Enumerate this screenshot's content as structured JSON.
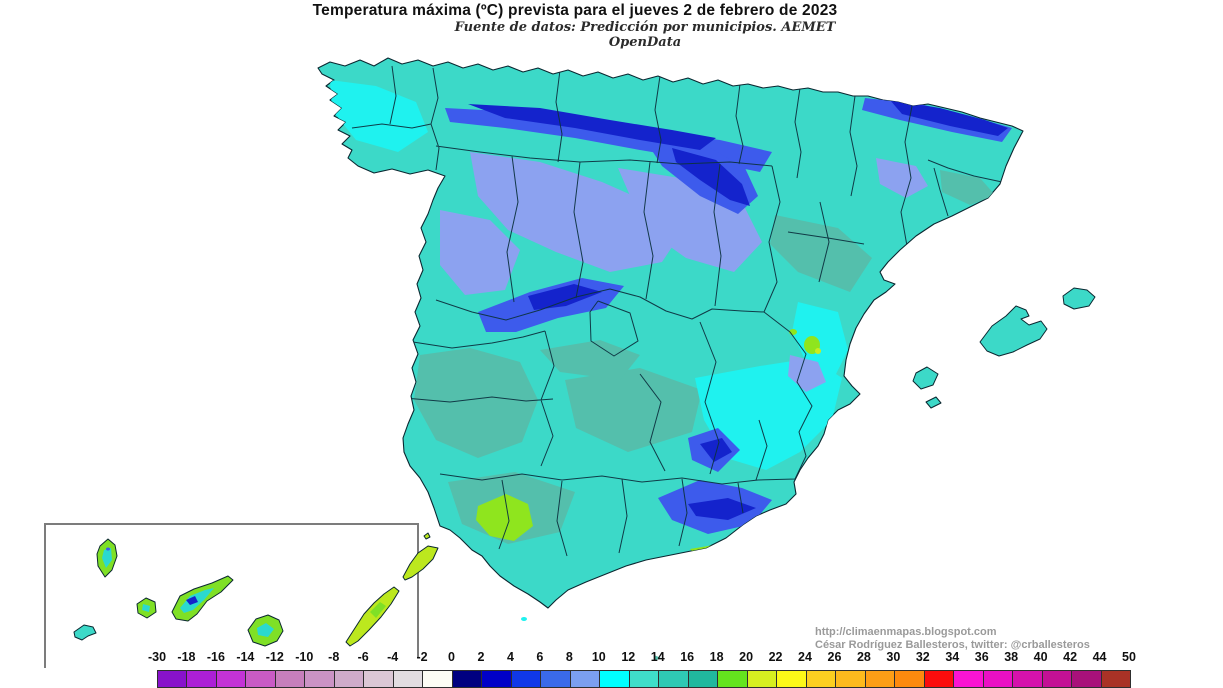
{
  "title": "Temperatura máxima (ºC) prevista para el jueves 2 de febrero de 2023",
  "subtitle": "Fuente de datos: Predicción por municipios. AEMET OpenData",
  "credits": {
    "url": "http://climaenmapas.blogspot.com",
    "author": "César Rodríguez Ballesteros, twitter: @crballesteros"
  },
  "legend": {
    "unit": "ºC",
    "values": [
      "-30",
      "-18",
      "-16",
      "-14",
      "-12",
      "-10",
      "-8",
      "-6",
      "-4",
      "-2",
      "0",
      "2",
      "4",
      "6",
      "8",
      "10",
      "12",
      "14",
      "16",
      "18",
      "20",
      "22",
      "24",
      "26",
      "28",
      "30",
      "32",
      "34",
      "36",
      "38",
      "40",
      "42",
      "44",
      "50"
    ],
    "cell_colors": [
      "#8812CB",
      "#AC1FD6",
      "#C433D6",
      "#C95BC5",
      "#C77FBC",
      "#CB93C5",
      "#CFABCA",
      "#DBC7D5",
      "#E2DDE1",
      "#FDFDF5",
      "#000080",
      "#0000C8",
      "#1038E8",
      "#3A6AEA",
      "#7B9FF0",
      "#00FFFF",
      "#3FDEC9",
      "#2FC9B4",
      "#21B89E",
      "#64E41E",
      "#D6EE20",
      "#FCF818",
      "#FCCF20",
      "#FDBA1D",
      "#FD9E16",
      "#FD8A0E",
      "#FB0D0D",
      "#FA14D2",
      "#EA10C4",
      "#D512AC",
      "#C31195",
      "#A8117A",
      "#A93226"
    ]
  },
  "map": {
    "region": "Spain (peninsula and Balearic Islands)",
    "inset": "Canary Islands",
    "palette": {
      "base": "#3CD9C8",
      "cyan": "#1FF2EF",
      "grayteal": "#54BFAC",
      "periwinkle": "#8CA2F0",
      "blue": "#3D5BEC",
      "darkblue": "#1423CC",
      "green": "#8FE51E",
      "yellowgreen": "#C9ED1F",
      "islandgreen": "#7FE026",
      "islandyellow": "#BCE81E",
      "islandcyan": "#2BD9D0"
    }
  }
}
